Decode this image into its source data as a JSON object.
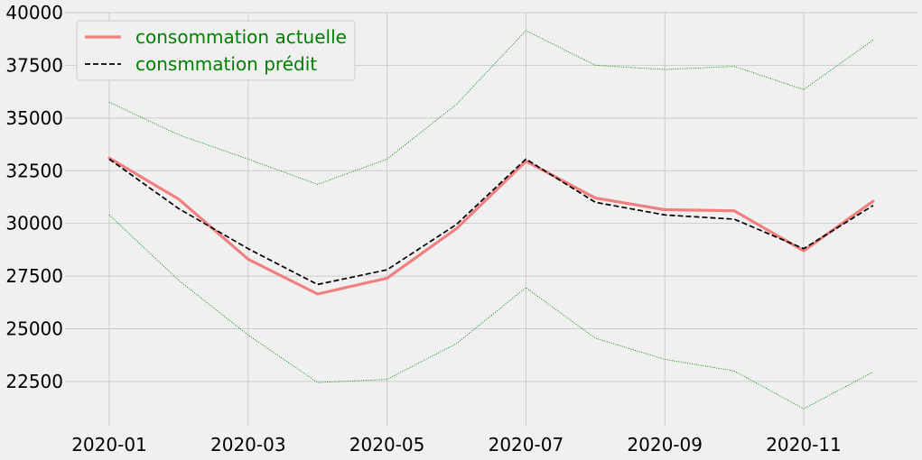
{
  "chart_data": {
    "type": "line",
    "title": "",
    "xlabel": "",
    "ylabel": "",
    "x": [
      "2020-01",
      "2020-02",
      "2020-03",
      "2020-04",
      "2020-05",
      "2020-06",
      "2020-07",
      "2020-08",
      "2020-09",
      "2020-10",
      "2020-11",
      "2020-12"
    ],
    "xticks": [
      "2020-01",
      "2020-03",
      "2020-05",
      "2020-07",
      "2020-09",
      "2020-11"
    ],
    "ylim": [
      20400,
      40000
    ],
    "yticks": [
      22500,
      25000,
      27500,
      30000,
      32500,
      35000,
      37500,
      40000
    ],
    "grid": true,
    "legend": {
      "placement": "top-left",
      "text_color": "#008000"
    },
    "series": [
      {
        "name": "consommation actuelle",
        "role": "actual",
        "color": "#f08080",
        "style": "solid",
        "values": [
          33100,
          31150,
          28300,
          26650,
          27400,
          29750,
          32950,
          31200,
          30650,
          30600,
          28700,
          31050
        ]
      },
      {
        "name": "consmmation prédit",
        "role": "predicted",
        "color": "#000000",
        "style": "dashed",
        "values": [
          33050,
          30700,
          28800,
          27100,
          27800,
          29950,
          33050,
          31000,
          30400,
          30200,
          28800,
          30850
        ]
      },
      {
        "name": "",
        "role": "upper-bound",
        "color": "#008000",
        "style": "dotted",
        "values": [
          35750,
          34200,
          33050,
          31850,
          33050,
          35650,
          39150,
          37500,
          37300,
          37450,
          36350,
          38700
        ]
      },
      {
        "name": "",
        "role": "lower-bound",
        "color": "#008000",
        "style": "dotted",
        "values": [
          30400,
          27300,
          24700,
          22450,
          22600,
          24300,
          26950,
          24550,
          23550,
          23000,
          21200,
          22950
        ]
      }
    ]
  }
}
